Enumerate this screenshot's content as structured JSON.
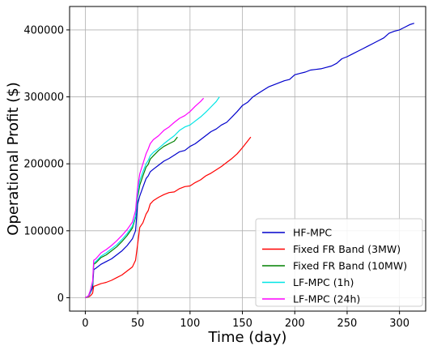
{
  "chart_data": {
    "type": "line",
    "title": "",
    "xlabel": "Time (day)",
    "ylabel": "Operational Profit ($)",
    "xlim": [
      -15,
      325
    ],
    "ylim": [
      -20000,
      435000
    ],
    "xticks": [
      0,
      50,
      100,
      150,
      200,
      250,
      300
    ],
    "yticks": [
      0,
      100000,
      200000,
      300000,
      400000
    ],
    "grid": true,
    "legend_position": "lower-right",
    "series": [
      {
        "name": "HF-MPC",
        "color": "#0000cc",
        "x": [
          0,
          3,
          5,
          7,
          8,
          10,
          15,
          20,
          25,
          30,
          35,
          40,
          45,
          48,
          50,
          52,
          55,
          58,
          60,
          62,
          65,
          70,
          75,
          80,
          85,
          90,
          95,
          100,
          105,
          110,
          115,
          120,
          125,
          130,
          135,
          140,
          145,
          150,
          155,
          160,
          165,
          170,
          175,
          180,
          185,
          190,
          195,
          200,
          205,
          210,
          215,
          220,
          225,
          230,
          235,
          240,
          245,
          250,
          255,
          260,
          265,
          270,
          275,
          280,
          285,
          290,
          295,
          300,
          305,
          310,
          314
        ],
        "y": [
          0,
          2000,
          8000,
          15000,
          42000,
          44000,
          50000,
          54000,
          58000,
          64000,
          70000,
          78000,
          88000,
          100000,
          140000,
          152000,
          165000,
          178000,
          182000,
          188000,
          192000,
          198000,
          204000,
          208000,
          213000,
          218000,
          220000,
          226000,
          230000,
          236000,
          242000,
          248000,
          252000,
          258000,
          262000,
          270000,
          278000,
          287000,
          292000,
          300000,
          305000,
          310000,
          315000,
          318000,
          321000,
          324000,
          326000,
          333000,
          335000,
          337000,
          340000,
          341000,
          342000,
          344000,
          346000,
          350000,
          357000,
          360000,
          364000,
          368000,
          372000,
          376000,
          380000,
          384000,
          388000,
          395000,
          398000,
          400000,
          404000,
          408000,
          410000
        ]
      },
      {
        "name": "Fixed FR Band (3MW)",
        "color": "#ff0000",
        "x": [
          0,
          3,
          5,
          7,
          8,
          10,
          15,
          20,
          25,
          30,
          35,
          40,
          45,
          48,
          50,
          52,
          55,
          58,
          60,
          62,
          65,
          70,
          75,
          80,
          85,
          90,
          95,
          100,
          105,
          110,
          115,
          120,
          125,
          130,
          135,
          140,
          145,
          150,
          155,
          158
        ],
        "y": [
          0,
          1000,
          3000,
          7000,
          17000,
          18000,
          21000,
          23000,
          26000,
          30000,
          34000,
          40000,
          46000,
          56000,
          80000,
          105000,
          112000,
          125000,
          130000,
          140000,
          145000,
          150000,
          154000,
          157000,
          158000,
          163000,
          166000,
          167000,
          172000,
          176000,
          182000,
          186000,
          191000,
          196000,
          202000,
          208000,
          215000,
          224000,
          234000,
          240000
        ]
      },
      {
        "name": "Fixed FR Band (10MW)",
        "color": "#008000",
        "x": [
          0,
          3,
          5,
          7,
          8,
          10,
          15,
          20,
          25,
          30,
          35,
          40,
          45,
          48,
          50,
          52,
          55,
          58,
          60,
          62,
          65,
          70,
          75,
          80,
          85,
          88
        ],
        "y": [
          0,
          2000,
          10000,
          20000,
          50000,
          52000,
          60000,
          64000,
          70000,
          76000,
          84000,
          93000,
          104000,
          120000,
          150000,
          168000,
          182000,
          195000,
          199000,
          207000,
          212000,
          220000,
          226000,
          230000,
          234000,
          240000
        ]
      },
      {
        "name": "LF-MPC (1h)",
        "color": "#00e5e5",
        "x": [
          0,
          3,
          5,
          7,
          8,
          10,
          15,
          20,
          25,
          30,
          35,
          40,
          45,
          48,
          50,
          52,
          55,
          58,
          60,
          62,
          65,
          70,
          75,
          80,
          85,
          90,
          95,
          100,
          105,
          110,
          115,
          120,
          125,
          128
        ],
        "y": [
          0,
          2000,
          10000,
          22000,
          52000,
          54000,
          62000,
          67000,
          73000,
          79000,
          87000,
          96000,
          107000,
          122000,
          155000,
          175000,
          188000,
          200000,
          205000,
          212000,
          217000,
          223000,
          230000,
          236000,
          242000,
          250000,
          255000,
          258000,
          264000,
          270000,
          277000,
          285000,
          293000,
          300000
        ]
      },
      {
        "name": "LF-MPC (24h)",
        "color": "#ff00ff",
        "x": [
          0,
          3,
          5,
          7,
          8,
          10,
          15,
          20,
          25,
          30,
          35,
          40,
          45,
          48,
          50,
          52,
          55,
          58,
          60,
          62,
          65,
          70,
          75,
          80,
          85,
          90,
          95,
          100,
          105,
          110,
          113
        ],
        "y": [
          0,
          3000,
          12000,
          25000,
          56000,
          58000,
          67000,
          72000,
          78000,
          85000,
          93000,
          102000,
          113000,
          130000,
          165000,
          185000,
          200000,
          215000,
          222000,
          230000,
          236000,
          242000,
          250000,
          255000,
          262000,
          268000,
          272000,
          278000,
          286000,
          293000,
          298000
        ]
      }
    ]
  }
}
